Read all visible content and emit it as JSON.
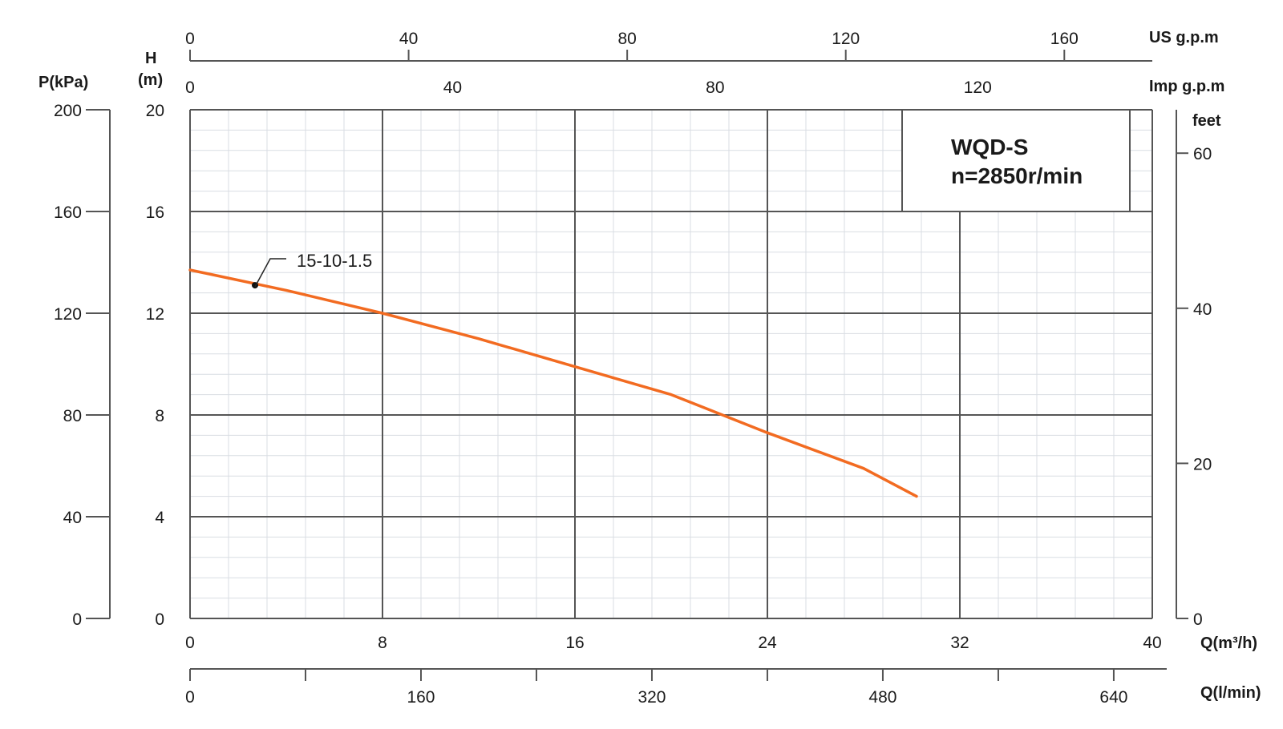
{
  "chart_data": {
    "type": "line",
    "title": "WQD-S",
    "subtitle": "n=2850r/min",
    "xlabel": "Q(m³/h)",
    "ylabel": "H (m)",
    "xlim": [
      0,
      40
    ],
    "ylim": [
      0,
      20
    ],
    "grid": true,
    "x_ticks": [
      0,
      8,
      16,
      24,
      32,
      40
    ],
    "y_ticks": [
      0,
      4,
      8,
      12,
      16,
      20
    ],
    "series": [
      {
        "name": "15-10-1.5",
        "color": "#f26b21",
        "x": [
          0,
          4,
          8,
          12,
          16,
          20,
          24,
          28,
          30.2
        ],
        "y": [
          13.7,
          12.9,
          12.0,
          11.0,
          9.9,
          8.8,
          7.3,
          5.9,
          4.8
        ]
      }
    ],
    "marker_point": {
      "x": 2.7,
      "y": 13.1
    },
    "secondary_axes": {
      "pressure": {
        "label": "P(kPa)",
        "range": [
          0,
          200
        ],
        "ticks": [
          0,
          40,
          80,
          120,
          160,
          200
        ]
      },
      "head_unit": {
        "label_line1": "H",
        "label_line2": "(m)"
      },
      "feet": {
        "label": "feet",
        "range": [
          0,
          65.6
        ],
        "ticks": [
          0,
          20,
          40,
          60
        ]
      },
      "us_gpm": {
        "label": "US g.p.m",
        "range": [
          0,
          176.1
        ],
        "ticks": [
          0,
          40,
          80,
          120,
          160
        ]
      },
      "imp_gpm": {
        "label": "Imp g.p.m",
        "range": [
          0,
          146.6
        ],
        "ticks": [
          0,
          40,
          80,
          120
        ]
      },
      "l_min": {
        "label": "Q(l/min)",
        "range": [
          0,
          666.7
        ],
        "ticks": [
          0,
          160,
          320,
          480,
          640
        ]
      }
    }
  }
}
